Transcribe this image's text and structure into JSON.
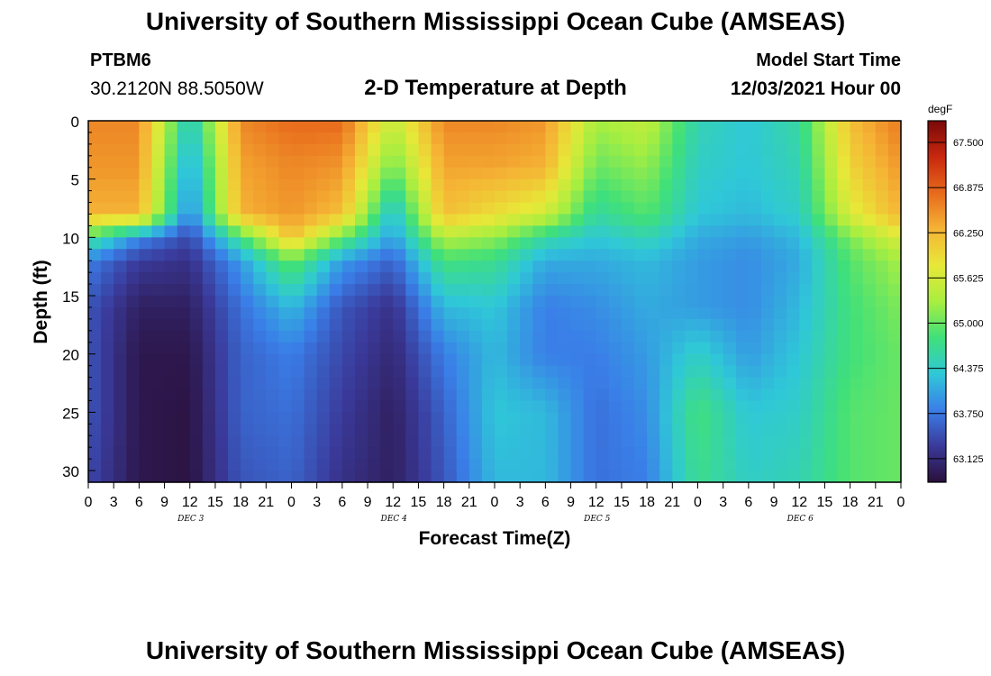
{
  "header": {
    "title": "University of Southern Mississippi Ocean Cube (AMSEAS)",
    "station": "PTBM6",
    "coords": "30.2120N  88.5050W",
    "subtitle": "2-D Temperature at Depth",
    "model_start_label": "Model Start Time",
    "model_start_value": "12/03/2021 Hour 00"
  },
  "footer": {
    "title": "University of Southern Mississippi Ocean Cube (AMSEAS)"
  },
  "chart_data": {
    "type": "heatmap",
    "xlabel": "Forecast Time(Z)",
    "ylabel": "Depth (ft)",
    "x_ticks": [
      "0",
      "3",
      "6",
      "9",
      "12",
      "15",
      "18",
      "21",
      "0",
      "3",
      "6",
      "9",
      "12",
      "15",
      "18",
      "21",
      "0",
      "3",
      "6",
      "9",
      "12",
      "15",
      "18",
      "21",
      "0",
      "3",
      "6",
      "9",
      "12",
      "15",
      "18",
      "21",
      "0"
    ],
    "day_labels": [
      "DEC 3",
      "DEC 4",
      "DEC 5",
      "DEC 6"
    ],
    "xlim_hours": [
      0,
      96
    ],
    "y_ticks": [
      0,
      5,
      10,
      15,
      20,
      25,
      30
    ],
    "ylim_ft": [
      0,
      31
    ],
    "y_inverted": true,
    "colorbar": {
      "unit": "degF",
      "ticks": [
        "67.500",
        "66.875",
        "66.250",
        "65.625",
        "65.000",
        "64.375",
        "63.750",
        "63.125"
      ],
      "range": [
        62.8,
        67.8
      ],
      "colors": [
        "#2a0f3a",
        "#3a3a9a",
        "#3a7ee8",
        "#2fc8d8",
        "#3fe07a",
        "#a8ee40",
        "#e8e838",
        "#f5b435",
        "#e86a1c",
        "#c8280e",
        "#7a0808"
      ]
    },
    "hours": [
      0,
      6,
      12,
      18,
      24,
      30,
      36,
      42,
      48,
      54,
      60,
      66,
      72,
      78,
      84,
      90,
      96
    ],
    "depths_ft": [
      0,
      4,
      8,
      10,
      12,
      16,
      20,
      25,
      31
    ],
    "temperatures_degF": [
      [
        66.6,
        66.6,
        64.3,
        66.6,
        66.8,
        66.8,
        65.5,
        66.6,
        66.6,
        66.5,
        65.3,
        65.5,
        64.5,
        64.3,
        64.6,
        66.2,
        66.7
      ],
      [
        66.5,
        66.5,
        64.0,
        66.4,
        66.6,
        66.5,
        65.0,
        66.4,
        66.4,
        66.3,
        65.0,
        65.2,
        64.4,
        64.3,
        64.5,
        66.0,
        66.5
      ],
      [
        66.3,
        66.3,
        63.8,
        66.3,
        66.5,
        66.2,
        64.2,
        66.2,
        65.9,
        65.6,
        64.6,
        64.9,
        64.3,
        64.2,
        64.4,
        65.7,
        66.3
      ],
      [
        64.8,
        63.9,
        63.4,
        64.8,
        66.2,
        65.0,
        64.0,
        65.4,
        65.2,
        64.6,
        64.3,
        64.5,
        64.1,
        64.0,
        64.2,
        65.1,
        65.7
      ],
      [
        63.8,
        63.3,
        63.2,
        64.0,
        65.0,
        64.0,
        63.6,
        64.8,
        64.7,
        64.1,
        64.1,
        64.2,
        64.0,
        63.9,
        64.1,
        64.9,
        65.3
      ],
      [
        63.5,
        63.0,
        63.0,
        63.7,
        64.2,
        63.5,
        63.2,
        64.2,
        64.3,
        63.8,
        63.9,
        64.1,
        64.0,
        63.9,
        64.2,
        64.8,
        65.1
      ],
      [
        63.5,
        62.9,
        62.9,
        63.6,
        63.8,
        63.4,
        63.1,
        63.8,
        64.2,
        63.8,
        63.8,
        64.0,
        64.4,
        64.0,
        64.3,
        64.8,
        65.0
      ],
      [
        63.5,
        62.9,
        62.85,
        63.6,
        63.7,
        63.3,
        63.0,
        63.6,
        64.3,
        64.2,
        63.7,
        63.9,
        64.8,
        64.3,
        64.4,
        64.9,
        65.0
      ],
      [
        63.4,
        62.9,
        62.85,
        63.5,
        63.6,
        63.2,
        63.0,
        63.5,
        64.2,
        64.2,
        63.7,
        63.8,
        64.7,
        64.4,
        64.5,
        64.9,
        65.0
      ]
    ]
  }
}
